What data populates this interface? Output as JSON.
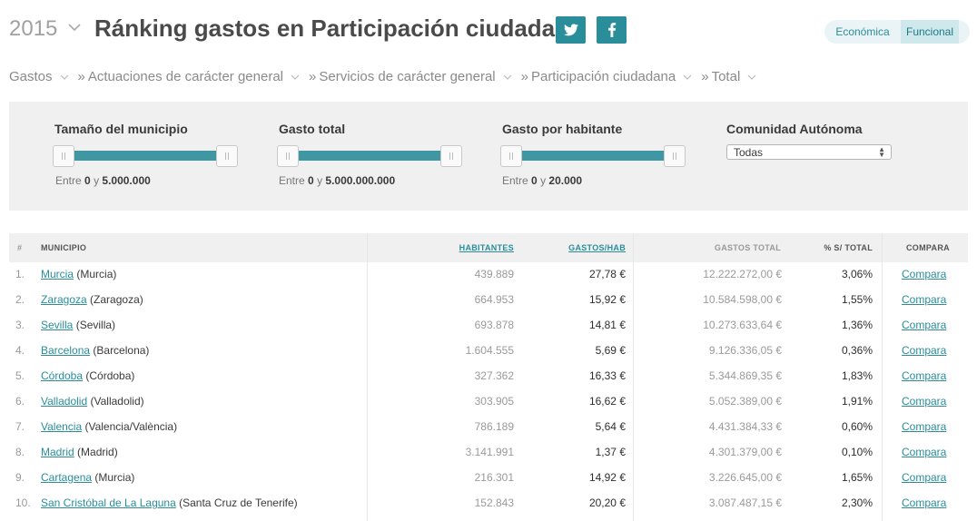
{
  "header": {
    "year": "2015",
    "title": "Ránking gastos en Participación ciudadana",
    "twitter_icon": "twitter-icon",
    "facebook_icon": "facebook-icon",
    "toggle": [
      "Económica",
      "Funcional"
    ],
    "toggle_selected": "Funcional",
    "accent_color": "#2a8d9a"
  },
  "breadcrumb": [
    {
      "sep": "",
      "label": "Gastos"
    },
    {
      "sep": "»",
      "label": "Actuaciones de carácter general"
    },
    {
      "sep": "»",
      "label": "Servicios de carácter general"
    },
    {
      "sep": "»",
      "label": "Participación ciudadana"
    },
    {
      "sep": "»",
      "label": "Total"
    }
  ],
  "filters": {
    "municipio": {
      "label": "Tamaño del municipio",
      "prefix": "Entre",
      "min": "0",
      "and": "y",
      "max": "5.000.000"
    },
    "gasto_total": {
      "label": "Gasto total",
      "prefix": "Entre",
      "min": "0",
      "and": "y",
      "max": "5.000.000.000"
    },
    "gasto_hab": {
      "label": "Gasto por habitante",
      "prefix": "Entre",
      "min": "0",
      "and": "y",
      "max": "20.000"
    },
    "comunidad": {
      "label": "Comunidad Autónoma",
      "selected": "Todas"
    }
  },
  "table": {
    "headers": {
      "num": "#",
      "municipio": "MUNICIPIO",
      "habitantes": "HABITANTES",
      "gastos_hab": "GASTOS/HAB",
      "gastos_total": "GASTOS TOTAL",
      "pct": "% S/ TOTAL",
      "compara": "COMPARA"
    },
    "rows": [
      {
        "num": "1.",
        "name": "Murcia",
        "region": "(Murcia)",
        "hab": "439.889",
        "gph": "27,78 €",
        "total": "12.222.272,00 €",
        "pct": "3,06%",
        "cmp": "Compara"
      },
      {
        "num": "2.",
        "name": "Zaragoza",
        "region": "(Zaragoza)",
        "hab": "664.953",
        "gph": "15,92 €",
        "total": "10.584.598,00 €",
        "pct": "1,55%",
        "cmp": "Compara"
      },
      {
        "num": "3.",
        "name": "Sevilla",
        "region": "(Sevilla)",
        "hab": "693.878",
        "gph": "14,81 €",
        "total": "10.273.633,64 €",
        "pct": "1,36%",
        "cmp": "Compara"
      },
      {
        "num": "4.",
        "name": "Barcelona",
        "region": "(Barcelona)",
        "hab": "1.604.555",
        "gph": "5,69 €",
        "total": "9.126.336,05 €",
        "pct": "0,36%",
        "cmp": "Compara"
      },
      {
        "num": "5.",
        "name": "Córdoba",
        "region": "(Córdoba)",
        "hab": "327.362",
        "gph": "16,33 €",
        "total": "5.344.869,35 €",
        "pct": "1,83%",
        "cmp": "Compara"
      },
      {
        "num": "6.",
        "name": "Valladolid",
        "region": "(Valladolid)",
        "hab": "303.905",
        "gph": "16,62 €",
        "total": "5.052.389,00 €",
        "pct": "1,91%",
        "cmp": "Compara"
      },
      {
        "num": "7.",
        "name": "Valencia",
        "region": "(Valencia/València)",
        "hab": "786.189",
        "gph": "5,64 €",
        "total": "4.431.384,33 €",
        "pct": "0,60%",
        "cmp": "Compara"
      },
      {
        "num": "8.",
        "name": "Madrid",
        "region": "(Madrid)",
        "hab": "3.141.991",
        "gph": "1,37 €",
        "total": "4.301.379,00 €",
        "pct": "0,10%",
        "cmp": "Compara"
      },
      {
        "num": "9.",
        "name": "Cartagena",
        "region": "(Murcia)",
        "hab": "216.301",
        "gph": "14,92 €",
        "total": "3.226.645,00 €",
        "pct": "1,65%",
        "cmp": "Compara"
      },
      {
        "num": "10.",
        "name": "San Cristóbal de La Laguna",
        "region": "(Santa Cruz de Tenerife)",
        "hab": "152.843",
        "gph": "20,20 €",
        "total": "3.087.487,15 €",
        "pct": "2,30%",
        "cmp": "Compara"
      }
    ]
  }
}
